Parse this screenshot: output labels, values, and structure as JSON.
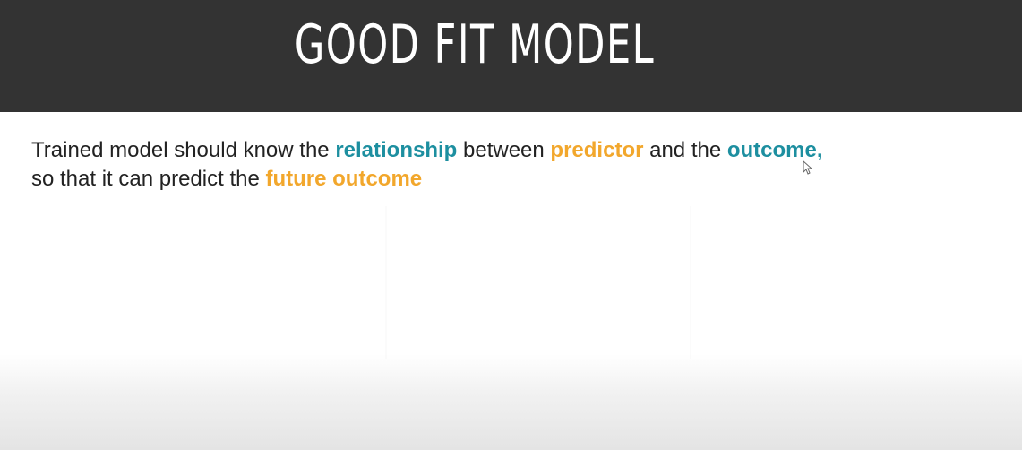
{
  "slide": {
    "title": "GOOD FIT MODEL",
    "body": {
      "line1": {
        "part1": "Trained model should know the ",
        "highlight1": "relationship",
        "part2": " between ",
        "highlight2": "predictor",
        "part3": " and the ",
        "highlight3": "outcome,"
      },
      "line2": {
        "part1": "so that it can predict the ",
        "highlight1": "future outcome"
      }
    }
  },
  "colors": {
    "header_background": "#333333",
    "title_text": "#ffffff",
    "body_text": "#222222",
    "teal_highlight": "#1d8fa0",
    "orange_highlight": "#f2a72c"
  },
  "icons": {
    "cursor": "mouse-pointer-icon"
  }
}
